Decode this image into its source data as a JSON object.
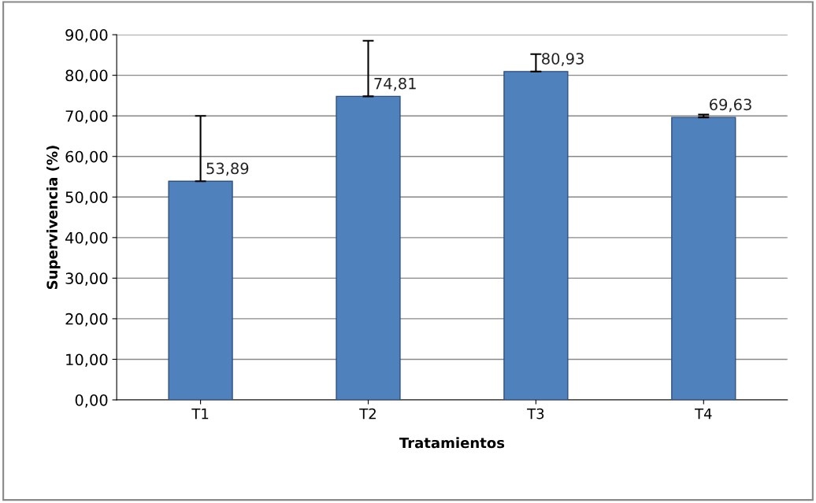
{
  "chart_data": {
    "type": "bar",
    "xlabel": "Tratamientos",
    "ylabel": "Supervivencia (%)",
    "categories": [
      "T1",
      "T2",
      "T3",
      "T4"
    ],
    "values": [
      53.89,
      74.81,
      80.93,
      69.63
    ],
    "value_labels": [
      "53,89",
      "74,81",
      "80,93",
      "69,63"
    ],
    "errors": [
      [
        53.89,
        70.0
      ],
      [
        74.81,
        88.5
      ],
      [
        80.93,
        85.2
      ],
      [
        69.63,
        70.3
      ]
    ],
    "color": "#4f81bd",
    "ylim": [
      0,
      90
    ],
    "yticks": [
      {
        "value": 0,
        "label": "0,00"
      },
      {
        "value": 10,
        "label": "10,00"
      },
      {
        "value": 20,
        "label": "20,00"
      },
      {
        "value": 30,
        "label": "30,00"
      },
      {
        "value": 40,
        "label": "40,00"
      },
      {
        "value": 50,
        "label": "50,00"
      },
      {
        "value": 60,
        "label": "60,00"
      },
      {
        "value": 70,
        "label": "70,00"
      },
      {
        "value": 80,
        "label": "80,00"
      },
      {
        "value": 90,
        "label": "90,00"
      }
    ],
    "grid": "y"
  }
}
